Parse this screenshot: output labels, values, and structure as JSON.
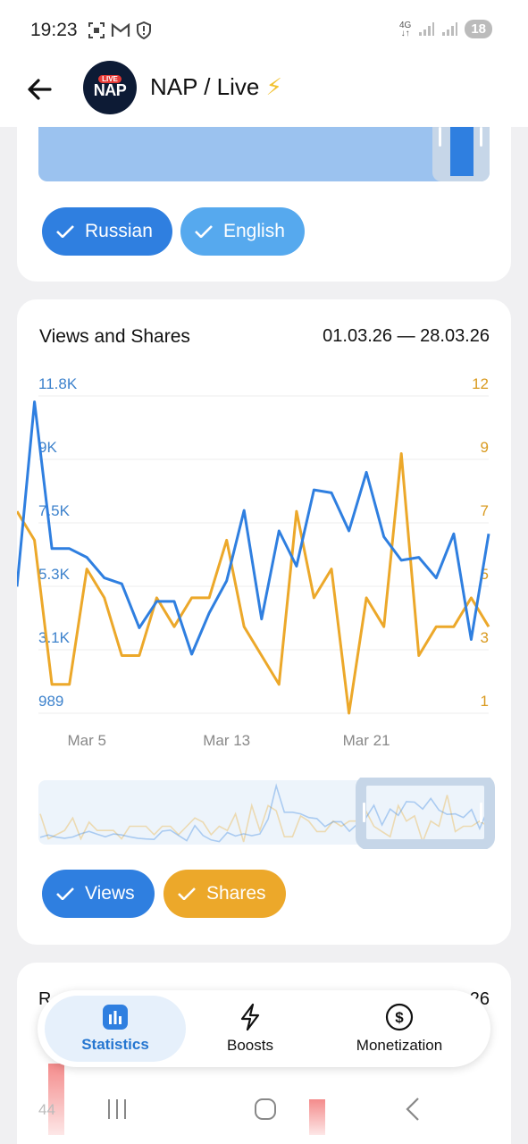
{
  "status": {
    "time": "19:23",
    "net": "4G",
    "battery": "18"
  },
  "header": {
    "title": "NAP / Live",
    "avatar_live": "LIVE",
    "avatar_text": "NAP"
  },
  "languages": [
    {
      "label": "Russian",
      "color": "#2f7fe0"
    },
    {
      "label": "English",
      "color": "#56a9ee"
    }
  ],
  "views_card": {
    "title": "Views and Shares",
    "range": "01.03.26 — 28.03.26",
    "series_toggles": [
      {
        "label": "Views",
        "color": "#2f7fe0"
      },
      {
        "label": "Shares",
        "color": "#eca82a"
      }
    ]
  },
  "chart_data": {
    "type": "line",
    "x": [
      "Mar 1",
      "Mar 2",
      "Mar 3",
      "Mar 4",
      "Mar 5",
      "Mar 6",
      "Mar 7",
      "Mar 8",
      "Mar 9",
      "Mar 10",
      "Mar 11",
      "Mar 12",
      "Mar 13",
      "Mar 14",
      "Mar 15",
      "Mar 16",
      "Mar 17",
      "Mar 18",
      "Mar 19",
      "Mar 20",
      "Mar 21",
      "Mar 22",
      "Mar 23",
      "Mar 24",
      "Mar 25",
      "Mar 26",
      "Mar 27",
      "Mar 28"
    ],
    "x_ticks": [
      "Mar 5",
      "Mar 13",
      "Mar 21"
    ],
    "series": [
      {
        "name": "Views",
        "axis": "left",
        "color": "#2f7fe0",
        "values": [
          5300,
          11600,
          6600,
          6600,
          6300,
          5600,
          5400,
          3900,
          4800,
          4800,
          3000,
          4400,
          5500,
          7900,
          4200,
          7200,
          6000,
          8600,
          8500,
          7200,
          9200,
          7000,
          6200,
          6300,
          5600,
          7100,
          3500,
          7100
        ]
      },
      {
        "name": "Shares",
        "axis": "right",
        "color": "#eca82a",
        "values": [
          8,
          7,
          2,
          2,
          6,
          5,
          3,
          3,
          5,
          4,
          5,
          5,
          7,
          4,
          3,
          2,
          8,
          5,
          6,
          1,
          5,
          4,
          10,
          3,
          4,
          4,
          5,
          4
        ]
      }
    ],
    "left_ticks": [
      "11.8K",
      "9K",
      "7.5K",
      "5.3K",
      "3.1K",
      "989"
    ],
    "right_ticks": [
      "12",
      "9",
      "7",
      "5",
      "3",
      "1"
    ],
    "ylim_left": [
      989,
      11800
    ],
    "ylim_right": [
      1,
      12
    ],
    "grid": true
  },
  "next_card": {
    "title_fragment": "R",
    "date_fragment": "26",
    "axis_fragment": "44"
  },
  "tabs": [
    {
      "label": "Statistics",
      "icon": "bar-chart-icon",
      "active": true
    },
    {
      "label": "Boosts",
      "icon": "lightning-icon",
      "active": false
    },
    {
      "label": "Monetization",
      "icon": "dollar-icon",
      "active": false
    }
  ],
  "colors": {
    "views": "#2f7fe0",
    "shares": "#eca82a",
    "accent": "#2576d0"
  }
}
